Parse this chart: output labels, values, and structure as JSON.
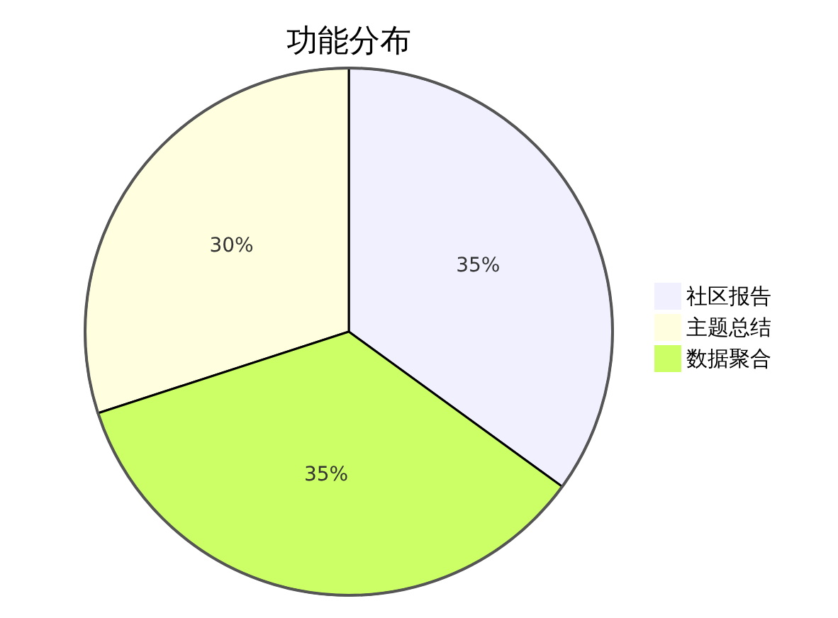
{
  "chart_data": {
    "type": "pie",
    "title": "功能分布",
    "categories": [
      "社区报告",
      "主题总结",
      "数据聚合"
    ],
    "values": [
      35,
      30,
      35
    ],
    "value_labels": [
      "35%",
      "30%",
      "35%"
    ],
    "colors": [
      "#f0f0ff",
      "#ffffe0",
      "#ccff66"
    ],
    "legend": "right"
  }
}
